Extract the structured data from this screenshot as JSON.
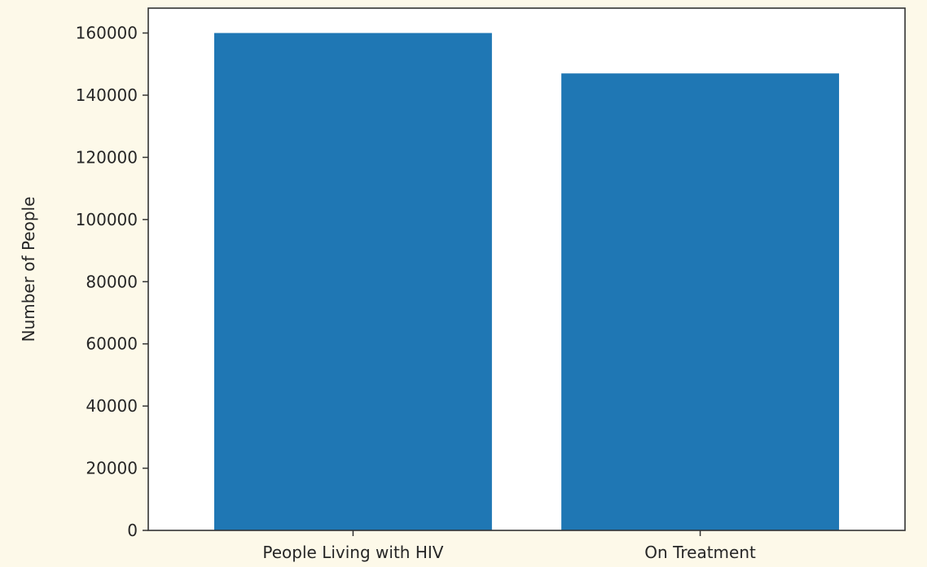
{
  "chart_data": {
    "type": "bar",
    "title": "",
    "xlabel": "",
    "ylabel": "Number of People",
    "categories": [
      "People Living with HIV",
      "On Treatment"
    ],
    "values": [
      160000,
      147000
    ],
    "ylim": [
      0,
      168000
    ],
    "yticks": [
      0,
      20000,
      40000,
      60000,
      80000,
      100000,
      120000,
      140000,
      160000
    ],
    "ytick_labels": [
      "0",
      "20000",
      "40000",
      "60000",
      "80000",
      "100000",
      "120000",
      "140000",
      "160000"
    ],
    "bar_color": "#1f77b4",
    "grid": false,
    "legend": "none"
  }
}
